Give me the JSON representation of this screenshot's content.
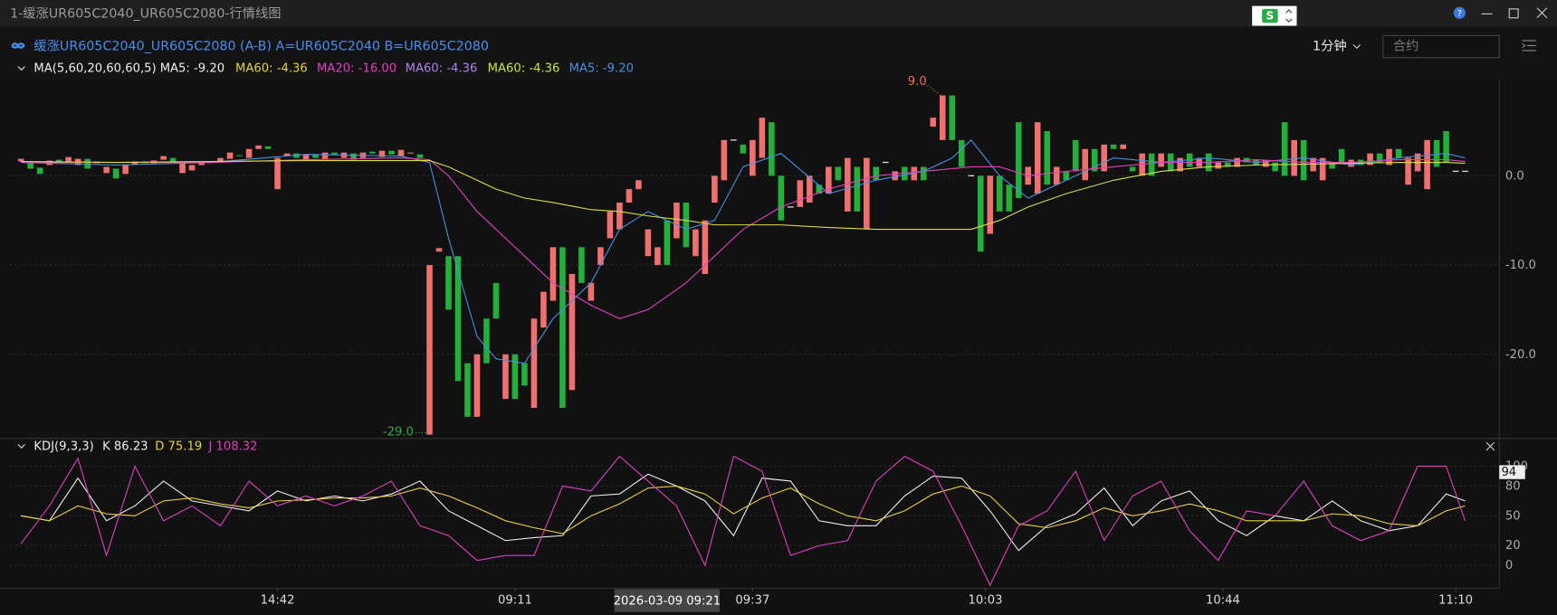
{
  "window": {
    "title": "1-缓涨UR605C2040_UR605C2080-行情线图"
  },
  "header": {
    "instrument": "缓涨UR605C2040_UR605C2080 (A-B) A=UR605C2040 B=UR605C2080",
    "period": "1分钟",
    "search_placeholder": "合约"
  },
  "chart_data": [
    {
      "type": "candlestick",
      "title": "MA(5,60,20,60,60,5)",
      "legend": [
        {
          "label": "MA5: -9.20",
          "color": "#eeeeee"
        },
        {
          "label": "MA60: -4.36",
          "color": "#e8d040"
        },
        {
          "label": "MA20: -16.00",
          "color": "#e040c0"
        },
        {
          "label": "MA60: -4.36",
          "color": "#b080f0"
        },
        {
          "label": "MA60: -4.36",
          "color": "#c8e640"
        },
        {
          "label": "MA5: -9.20",
          "color": "#4a90e2"
        }
      ],
      "up_color": "#f07070",
      "down_color": "#22b03a",
      "flat_color": "#dddddd",
      "candles": [
        [
          1.6,
          1.9
        ],
        [
          1.5,
          0.8
        ],
        [
          0.9,
          0.2
        ],
        [
          1.2,
          1.7
        ],
        [
          1.8,
          1.6
        ],
        [
          1.6,
          2.1
        ],
        [
          1.2,
          1.9
        ],
        [
          1.9,
          0.8
        ],
        [
          1.4,
          1.6
        ],
        [
          0.3,
          1.0
        ],
        [
          0.8,
          -0.3
        ],
        [
          0.2,
          1.2
        ],
        [
          1.3,
          1.6
        ],
        [
          1.6,
          1.4
        ],
        [
          1.4,
          1.7
        ],
        [
          1.8,
          2.2
        ],
        [
          2.0,
          1.5
        ],
        [
          0.3,
          1.4
        ],
        [
          0.6,
          1.2
        ],
        [
          1.2,
          1.6
        ],
        [
          1.5,
          1.5
        ],
        [
          1.6,
          2.0
        ],
        [
          1.9,
          2.6
        ],
        [
          2.3,
          2.2
        ],
        [
          2.0,
          3.0
        ],
        [
          3.0,
          3.4
        ],
        [
          3.3,
          3.0
        ],
        [
          -1.5,
          2.0
        ],
        [
          2.2,
          2.5
        ],
        [
          2.5,
          2.0
        ],
        [
          1.8,
          2.4
        ],
        [
          2.4,
          2.0
        ],
        [
          1.9,
          2.6
        ],
        [
          2.6,
          2.4
        ],
        [
          2.0,
          2.6
        ],
        [
          2.5,
          1.8
        ],
        [
          2.0,
          2.6
        ],
        [
          2.7,
          2.5
        ],
        [
          2.1,
          2.8
        ],
        [
          2.8,
          2.4
        ],
        [
          2.2,
          2.9
        ],
        [
          2.5,
          2.6
        ],
        [
          2.4,
          2.0
        ],
        [
          -29,
          -10
        ],
        [
          -8.5,
          -8.1
        ],
        [
          -9,
          -15
        ],
        [
          -9,
          -23
        ],
        [
          -21,
          -27
        ],
        [
          -27,
          -20
        ],
        [
          -16,
          -21
        ],
        [
          -12,
          -16
        ],
        [
          -25,
          -20
        ],
        [
          -20,
          -25
        ],
        [
          -21,
          -23.5
        ],
        [
          -26,
          -16
        ],
        [
          -17,
          -13
        ],
        [
          -14,
          -8
        ],
        [
          -8,
          -26
        ],
        [
          -24,
          -11
        ],
        [
          -8,
          -12
        ],
        [
          -14,
          -12
        ],
        [
          -10,
          -8
        ],
        [
          -7,
          -4
        ],
        [
          -6,
          -3
        ],
        [
          -3,
          -1.5
        ],
        [
          -1.5,
          -0.5
        ],
        [
          -9,
          -6
        ],
        [
          -10,
          -8
        ],
        [
          -5,
          -10
        ],
        [
          -7,
          -3
        ],
        [
          -3,
          -8
        ],
        [
          -9,
          -6
        ],
        [
          -11,
          -5
        ],
        [
          -3,
          0
        ],
        [
          -0.5,
          4
        ],
        [
          4.0,
          4.0
        ],
        [
          3.5,
          2.5
        ],
        [
          0,
          4
        ],
        [
          2,
          6.5
        ],
        [
          6,
          0
        ],
        [
          0,
          -5
        ],
        [
          -3.5,
          -3.5
        ],
        [
          -3.5,
          -0.5
        ],
        [
          -3,
          0
        ],
        [
          -1,
          -2
        ],
        [
          -2,
          1
        ],
        [
          1,
          -0.5
        ],
        [
          -4,
          2
        ],
        [
          1,
          -4
        ],
        [
          -6,
          2
        ],
        [
          1,
          -0.5
        ],
        [
          1.5,
          1.5
        ],
        [
          -0.5,
          0.5
        ],
        [
          1,
          -0.5
        ],
        [
          -0.5,
          1
        ],
        [
          1,
          -0.5
        ],
        [
          5.5,
          6.5
        ],
        [
          4,
          9
        ],
        [
          9,
          4
        ],
        [
          4,
          1
        ],
        [
          0,
          0
        ],
        [
          0,
          -8.5
        ],
        [
          -6.5,
          0
        ],
        [
          0,
          -4
        ],
        [
          -1,
          -4
        ],
        [
          6,
          -2.5
        ],
        [
          -1,
          1
        ],
        [
          -2,
          6
        ],
        [
          5,
          -1
        ],
        [
          -1,
          1
        ],
        [
          0.5,
          -0.5
        ],
        [
          4,
          0.5
        ],
        [
          -0.5,
          3
        ],
        [
          3,
          0.5
        ],
        [
          0.5,
          3.5
        ],
        [
          3.5,
          3.0
        ],
        [
          3.0,
          3.5
        ],
        [
          1,
          0.5
        ],
        [
          0,
          2.5
        ],
        [
          2.5,
          0
        ],
        [
          1,
          2.5
        ],
        [
          2.5,
          0.5
        ],
        [
          0.5,
          2
        ],
        [
          2.5,
          1
        ],
        [
          1,
          2
        ],
        [
          2.5,
          0.5
        ],
        [
          0.8,
          1.5
        ],
        [
          1.5,
          1
        ],
        [
          1,
          2
        ],
        [
          2,
          1.5
        ],
        [
          1.8,
          1.2
        ],
        [
          1,
          1.7
        ],
        [
          1.5,
          0.5
        ],
        [
          6,
          0
        ],
        [
          0,
          4
        ],
        [
          4,
          -0.5
        ],
        [
          0.5,
          2
        ],
        [
          -0.5,
          2
        ],
        [
          1.5,
          0.8
        ],
        [
          3,
          1.5
        ],
        [
          1,
          1.8
        ],
        [
          1.8,
          1.2
        ],
        [
          1.2,
          2.5
        ],
        [
          2.5,
          1.5
        ],
        [
          1.2,
          3
        ],
        [
          3,
          2
        ],
        [
          -1,
          2
        ],
        [
          0.5,
          2.5
        ],
        [
          -1.5,
          4
        ],
        [
          4,
          1
        ],
        [
          5,
          1.5
        ],
        [
          0.5,
          0.5
        ],
        [
          0.5,
          0.5
        ]
      ],
      "lines": {
        "x": [
          0,
          10,
          20,
          30,
          40,
          43,
          45,
          48,
          50,
          53,
          56,
          60,
          63,
          66,
          70,
          73,
          76,
          80,
          85,
          90,
          95,
          98,
          100,
          103,
          106,
          110,
          115,
          120,
          125,
          130,
          135,
          140,
          145,
          150,
          152
        ],
        "series": [
          {
            "color": "#4a90e2",
            "values": [
              1.5,
              1.2,
              1.5,
              2.4,
              2.2,
              1.5,
              -7,
              -18,
              -20.5,
              -21,
              -16,
              -12,
              -6,
              -4,
              -6,
              -5,
              1,
              2.5,
              -2,
              -0.5,
              0.5,
              2,
              4,
              0,
              -2.5,
              -0.5,
              2,
              1.5,
              2,
              1.5,
              2,
              1.2,
              2,
              2.5,
              2
            ]
          },
          {
            "color": "#e040c0",
            "values": [
              1.5,
              1.5,
              1.5,
              1.8,
              2,
              1.8,
              0,
              -4,
              -6,
              -9,
              -12,
              -14.5,
              -16,
              -15,
              -12,
              -9,
              -6,
              -3.5,
              -1.5,
              0,
              0.5,
              0.8,
              1,
              1,
              0,
              0.5,
              1,
              1.5,
              1.5,
              1.8,
              1.5,
              1.5,
              1.8,
              1.8,
              1.6
            ]
          },
          {
            "color": "#d8e040",
            "values": [
              1.6,
              1.5,
              1.6,
              1.7,
              1.7,
              1.7,
              1,
              -0.5,
              -1.5,
              -2.5,
              -3,
              -3.8,
              -4,
              -4.5,
              -5,
              -5.5,
              -5.5,
              -5.5,
              -5.8,
              -6,
              -6,
              -6,
              -6,
              -5,
              -3.5,
              -2,
              -0.5,
              0.5,
              1,
              1.2,
              1.3,
              1.4,
              1.5,
              1.5,
              1.4
            ]
          }
        ]
      },
      "ylim": [
        -29.2,
        10.8
      ],
      "yticks": [
        {
          "value": 0,
          "label": "0.0"
        },
        {
          "value": -10,
          "label": "-10.0"
        },
        {
          "value": -20,
          "label": "-20.0"
        }
      ],
      "xticks": [
        {
          "value": 27,
          "label": "14:42"
        },
        {
          "value": 52,
          "label": "09:11"
        },
        {
          "value": 77,
          "label": "09:37"
        },
        {
          "value": 101.5,
          "label": "10:03"
        },
        {
          "value": 126.5,
          "label": "10:44"
        },
        {
          "value": 151,
          "label": "11:10"
        }
      ],
      "crosshair": {
        "value": 68,
        "label": "2026-03-09 09:21"
      },
      "annotations": [
        {
          "index": 97,
          "value": 9,
          "label": "9.0",
          "color": "#f07050"
        },
        {
          "index": 43,
          "value": -29,
          "label": "-29.0",
          "color": "#2ab040"
        }
      ]
    },
    {
      "type": "line",
      "title": "KDJ(9,3,3)",
      "legend": [
        {
          "label": "K 86.23",
          "color": "#eeeeee"
        },
        {
          "label": "D 75.19",
          "color": "#e8d040"
        },
        {
          "label": "J 108.32",
          "color": "#e040c0"
        }
      ],
      "x": [
        0,
        3,
        6,
        9,
        12,
        15,
        18,
        21,
        24,
        27,
        30,
        33,
        36,
        39,
        42,
        45,
        48,
        51,
        54,
        57,
        60,
        63,
        66,
        69,
        72,
        75,
        78,
        81,
        84,
        87,
        90,
        93,
        96,
        99,
        102,
        105,
        108,
        111,
        114,
        117,
        120,
        123,
        126,
        129,
        132,
        135,
        138,
        141,
        144,
        147,
        150,
        152
      ],
      "series": [
        {
          "color": "#eeeeee",
          "values": [
            50,
            45,
            88,
            45,
            60,
            85,
            65,
            60,
            55,
            75,
            65,
            70,
            65,
            72,
            85,
            55,
            40,
            25,
            28,
            30,
            70,
            72,
            92,
            80,
            65,
            30,
            88,
            85,
            45,
            40,
            40,
            70,
            90,
            88,
            55,
            15,
            40,
            52,
            78,
            40,
            65,
            75,
            45,
            30,
            50,
            45,
            65,
            45,
            35,
            40,
            72,
            65
          ]
        },
        {
          "color": "#e8d040",
          "values": [
            50,
            45,
            60,
            52,
            50,
            65,
            68,
            62,
            58,
            65,
            66,
            68,
            68,
            70,
            78,
            70,
            58,
            45,
            38,
            32,
            50,
            62,
            78,
            80,
            72,
            52,
            68,
            78,
            62,
            50,
            45,
            55,
            72,
            80,
            70,
            42,
            38,
            45,
            58,
            50,
            55,
            62,
            55,
            45,
            45,
            45,
            52,
            50,
            42,
            40,
            55,
            60
          ]
        },
        {
          "color": "#e040c0",
          "values": [
            22,
            60,
            108,
            10,
            100,
            45,
            60,
            40,
            85,
            60,
            70,
            60,
            70,
            85,
            40,
            30,
            5,
            10,
            10,
            80,
            75,
            110,
            85,
            60,
            0,
            110,
            95,
            10,
            20,
            25,
            85,
            110,
            95,
            40,
            -20,
            40,
            55,
            95,
            25,
            70,
            85,
            35,
            5,
            55,
            50,
            85,
            40,
            25,
            35,
            100,
            100,
            45
          ]
        }
      ],
      "ylim": [
        -23,
        110
      ],
      "yticks": [
        100,
        80,
        50,
        20,
        0
      ],
      "marker": 94
    }
  ]
}
